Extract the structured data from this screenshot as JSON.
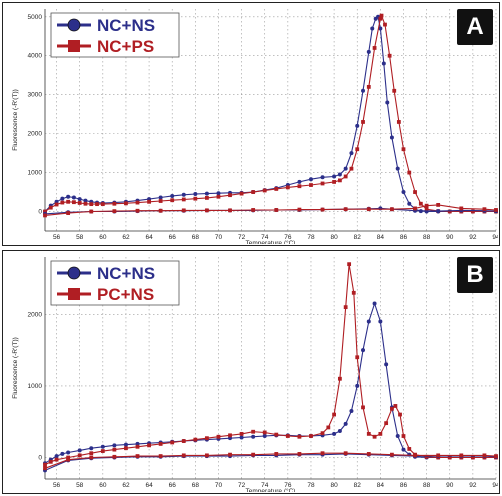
{
  "chart_data": [
    {
      "type": "line",
      "panel_label": "A",
      "xlabel": "Temperature (°C)",
      "ylabel": "Fluorescence (-R'(T))",
      "xlim": [
        55,
        94
      ],
      "ylim": [
        -500,
        5200
      ],
      "x_ticks": [
        56,
        58,
        60,
        62,
        64,
        66,
        68,
        70,
        72,
        74,
        76,
        78,
        80,
        82,
        84,
        86,
        88,
        90,
        92,
        94
      ],
      "y_ticks": [
        0,
        1000,
        2000,
        3000,
        4000,
        5000
      ],
      "grid": true,
      "legend_position": "top-left",
      "series": [
        {
          "name": "NC+NS",
          "color": "#2c2f8a",
          "marker": "circle",
          "peak": {
            "x": 83.8,
            "y": 5000
          },
          "x": [
            55,
            55.5,
            56,
            56.5,
            57,
            57.5,
            58,
            58.5,
            59,
            59.5,
            60,
            61,
            62,
            63,
            64,
            65,
            66,
            67,
            68,
            69,
            70,
            71,
            72,
            73,
            74,
            75,
            76,
            77,
            78,
            79,
            80,
            80.5,
            81,
            81.5,
            82,
            82.5,
            83,
            83.3,
            83.6,
            83.8,
            84,
            84.3,
            84.6,
            85,
            85.5,
            86,
            86.5,
            87,
            87.5,
            88,
            89,
            90,
            91,
            92,
            93,
            94
          ],
          "y": [
            0,
            150,
            250,
            330,
            380,
            360,
            320,
            280,
            250,
            230,
            220,
            230,
            250,
            280,
            320,
            360,
            400,
            430,
            450,
            460,
            470,
            480,
            480,
            500,
            550,
            600,
            680,
            760,
            830,
            880,
            900,
            950,
            1100,
            1500,
            2200,
            3100,
            4100,
            4700,
            4950,
            5000,
            4700,
            3800,
            2800,
            1900,
            1100,
            500,
            200,
            60,
            10,
            0,
            0,
            0,
            0,
            0,
            0,
            0
          ]
        },
        {
          "name": "NC+PS",
          "color": "#b01e23",
          "marker": "square",
          "peak": {
            "x": 84.1,
            "y": 5030
          },
          "x": [
            55,
            55.5,
            56,
            56.5,
            57,
            57.5,
            58,
            58.5,
            59,
            59.5,
            60,
            61,
            62,
            63,
            64,
            65,
            66,
            67,
            68,
            69,
            70,
            71,
            72,
            73,
            74,
            75,
            76,
            77,
            78,
            79,
            80,
            80.5,
            81,
            81.5,
            82,
            82.5,
            83,
            83.5,
            84,
            84.1,
            84.4,
            84.8,
            85.2,
            85.6,
            86,
            86.5,
            87,
            87.5,
            88,
            89,
            90,
            91,
            92,
            93,
            94
          ],
          "y": [
            0,
            100,
            180,
            230,
            250,
            240,
            220,
            200,
            190,
            190,
            190,
            200,
            210,
            230,
            250,
            270,
            290,
            310,
            330,
            350,
            380,
            420,
            460,
            500,
            540,
            580,
            620,
            650,
            680,
            720,
            760,
            800,
            900,
            1100,
            1600,
            2300,
            3200,
            4200,
            4950,
            5030,
            4800,
            4000,
            3100,
            2300,
            1600,
            1000,
            500,
            200,
            60,
            10,
            0,
            0,
            0,
            0,
            0
          ]
        },
        {
          "name": "NC+NS baseline",
          "color": "#2c2f8a",
          "marker": "circle",
          "x": [
            55,
            57,
            59,
            61,
            63,
            65,
            67,
            69,
            71,
            73,
            75,
            77,
            79,
            81,
            83,
            84,
            85,
            87,
            89,
            91,
            93,
            94
          ],
          "y": [
            -60,
            -20,
            0,
            0,
            10,
            20,
            20,
            30,
            30,
            30,
            40,
            40,
            50,
            60,
            70,
            80,
            60,
            20,
            10,
            30,
            20,
            10
          ]
        },
        {
          "name": "NC+PS baseline",
          "color": "#b01e23",
          "marker": "square",
          "x": [
            55,
            57,
            59,
            61,
            63,
            65,
            67,
            69,
            71,
            73,
            75,
            77,
            79,
            81,
            83,
            85,
            87,
            88,
            89,
            91,
            93,
            94
          ],
          "y": [
            -100,
            -40,
            0,
            10,
            20,
            20,
            30,
            30,
            30,
            40,
            40,
            50,
            50,
            60,
            60,
            60,
            80,
            150,
            170,
            80,
            60,
            40
          ]
        }
      ],
      "legend": [
        {
          "name": "NC+NS",
          "color": "#2c2f8a",
          "marker": "circle"
        },
        {
          "name": "NC+PS",
          "color": "#b01e23",
          "marker": "square"
        }
      ]
    },
    {
      "type": "line",
      "panel_label": "B",
      "xlabel": "Temperature (°C)",
      "ylabel": "Fluorescence (-R'(T))",
      "xlim": [
        55,
        94
      ],
      "ylim": [
        -300,
        2800
      ],
      "x_ticks": [
        56,
        58,
        60,
        62,
        64,
        66,
        68,
        70,
        72,
        74,
        76,
        78,
        80,
        82,
        84,
        86,
        88,
        90,
        92,
        94
      ],
      "y_ticks": [
        0,
        1000,
        2000
      ],
      "grid": true,
      "legend_position": "top-left",
      "series": [
        {
          "name": "NC+NS",
          "color": "#2c2f8a",
          "marker": "circle",
          "peak": {
            "x": 83.5,
            "y": 2150
          },
          "x": [
            55,
            55.5,
            56,
            56.5,
            57,
            58,
            59,
            60,
            61,
            62,
            63,
            64,
            65,
            66,
            67,
            68,
            69,
            70,
            71,
            72,
            73,
            74,
            75,
            76,
            77,
            78,
            79,
            80,
            80.5,
            81,
            81.5,
            82,
            82.5,
            83,
            83.5,
            84,
            84.5,
            85,
            85.5,
            86,
            86.5,
            87,
            88,
            89,
            90,
            91,
            92,
            93,
            94
          ],
          "y": [
            -80,
            -30,
            20,
            50,
            70,
            100,
            130,
            150,
            170,
            180,
            190,
            200,
            210,
            220,
            230,
            240,
            250,
            260,
            270,
            280,
            290,
            300,
            310,
            310,
            300,
            300,
            310,
            330,
            370,
            470,
            650,
            1000,
            1500,
            1900,
            2150,
            1900,
            1300,
            700,
            300,
            110,
            40,
            10,
            0,
            0,
            0,
            0,
            0,
            0,
            0
          ]
        },
        {
          "name": "PC+NS",
          "color": "#b01e23",
          "marker": "square",
          "peak": {
            "x": 81.3,
            "y": 2700
          },
          "x": [
            55,
            55.5,
            56,
            57,
            58,
            59,
            60,
            61,
            62,
            63,
            64,
            65,
            66,
            67,
            68,
            69,
            70,
            71,
            72,
            73,
            74,
            75,
            76,
            77,
            78,
            79,
            79.5,
            80,
            80.5,
            81,
            81.3,
            81.7,
            82,
            82.5,
            83,
            83.5,
            84,
            84.5,
            85,
            85.3,
            85.7,
            86,
            86.5,
            87,
            88,
            89,
            90,
            91,
            92,
            93,
            94
          ],
          "y": [
            -100,
            -60,
            -30,
            0,
            30,
            60,
            90,
            110,
            130,
            150,
            170,
            190,
            210,
            230,
            250,
            270,
            290,
            310,
            330,
            360,
            350,
            320,
            300,
            290,
            300,
            340,
            420,
            600,
            1100,
            2100,
            2700,
            2300,
            1400,
            700,
            330,
            290,
            330,
            480,
            680,
            720,
            600,
            300,
            120,
            40,
            10,
            0,
            0,
            0,
            0,
            0,
            0
          ]
        },
        {
          "name": "NC+NS baseline",
          "color": "#2c2f8a",
          "marker": "circle",
          "x": [
            55,
            57,
            59,
            61,
            63,
            65,
            67,
            69,
            71,
            73,
            75,
            77,
            79,
            81,
            83,
            85,
            87,
            89,
            91,
            93,
            94
          ],
          "y": [
            -180,
            -40,
            -10,
            0,
            10,
            10,
            20,
            20,
            20,
            30,
            30,
            40,
            40,
            50,
            40,
            30,
            20,
            20,
            20,
            20,
            10
          ]
        },
        {
          "name": "PC+NS baseline",
          "color": "#b01e23",
          "marker": "square",
          "x": [
            55,
            57,
            59,
            61,
            63,
            65,
            67,
            69,
            71,
            73,
            75,
            77,
            79,
            81,
            83,
            85,
            87,
            89,
            91,
            93,
            94
          ],
          "y": [
            -150,
            -30,
            0,
            10,
            20,
            20,
            30,
            30,
            40,
            40,
            50,
            50,
            60,
            60,
            50,
            40,
            30,
            30,
            30,
            30,
            20
          ]
        }
      ],
      "legend": [
        {
          "name": "NC+NS",
          "color": "#2c2f8a",
          "marker": "circle"
        },
        {
          "name": "PC+NS",
          "color": "#b01e23",
          "marker": "square"
        }
      ]
    }
  ],
  "panels": {
    "a": {
      "badge": "A"
    },
    "b": {
      "badge": "B"
    }
  }
}
